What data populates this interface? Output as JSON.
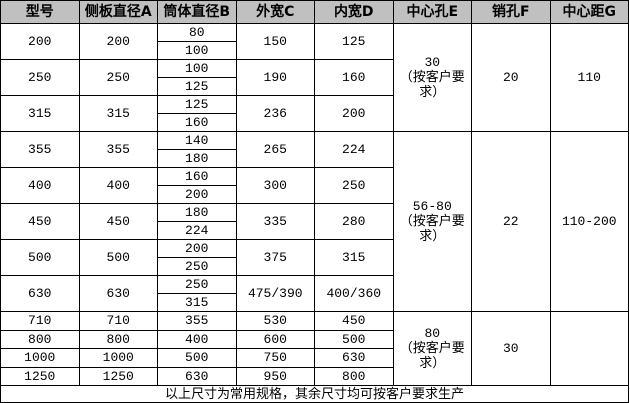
{
  "headers": [
    "型号",
    "侧板直径A",
    "筒体直径B",
    "外宽C",
    "内宽D",
    "中心孔E",
    "销孔F",
    "中心距G"
  ],
  "groups": [
    {
      "model": "200",
      "a": "200",
      "b": [
        "80",
        "100"
      ],
      "c": "150",
      "d": "125"
    },
    {
      "model": "250",
      "a": "250",
      "b": [
        "100",
        "125"
      ],
      "c": "190",
      "d": "160"
    },
    {
      "model": "315",
      "a": "315",
      "b": [
        "125",
        "160"
      ],
      "c": "236",
      "d": "200"
    },
    {
      "model": "355",
      "a": "355",
      "b": [
        "140",
        "180"
      ],
      "c": "265",
      "d": "224"
    },
    {
      "model": "400",
      "a": "400",
      "b": [
        "160",
        "200"
      ],
      "c": "300",
      "d": "250"
    },
    {
      "model": "450",
      "a": "450",
      "b": [
        "180",
        "224"
      ],
      "c": "335",
      "d": "280"
    },
    {
      "model": "500",
      "a": "500",
      "b": [
        "200",
        "250"
      ],
      "c": "375",
      "d": "315"
    },
    {
      "model": "630",
      "a": "630",
      "b": [
        "250",
        "315"
      ],
      "c": "475/390",
      "d": "400/360"
    }
  ],
  "large_rows": [
    {
      "model": "710",
      "a": "710",
      "b": "355",
      "c": "530",
      "d": "450"
    },
    {
      "model": "800",
      "a": "800",
      "b": "400",
      "c": "600",
      "d": "500"
    },
    {
      "model": "1000",
      "a": "1000",
      "b": "500",
      "c": "750",
      "d": "630"
    },
    {
      "model": "1250",
      "a": "1250",
      "b": "630",
      "c": "950",
      "d": "800"
    }
  ],
  "merged": {
    "block1": {
      "e_value": "30",
      "e_note": "（按客户要求）",
      "f": "20",
      "g": "110"
    },
    "block2": {
      "e_value": "56-80",
      "e_note": "（按客户要求）",
      "f": "22",
      "g": "110-200"
    },
    "block3": {
      "e_value": "80",
      "e_note": "（按客户要求）",
      "f": "30",
      "g": ""
    }
  },
  "footer": "以上尺寸为常用规格，其余尺寸均可按客户要求生产",
  "colors": {
    "header_bg": "#c0c0c0",
    "border": "#000000"
  }
}
